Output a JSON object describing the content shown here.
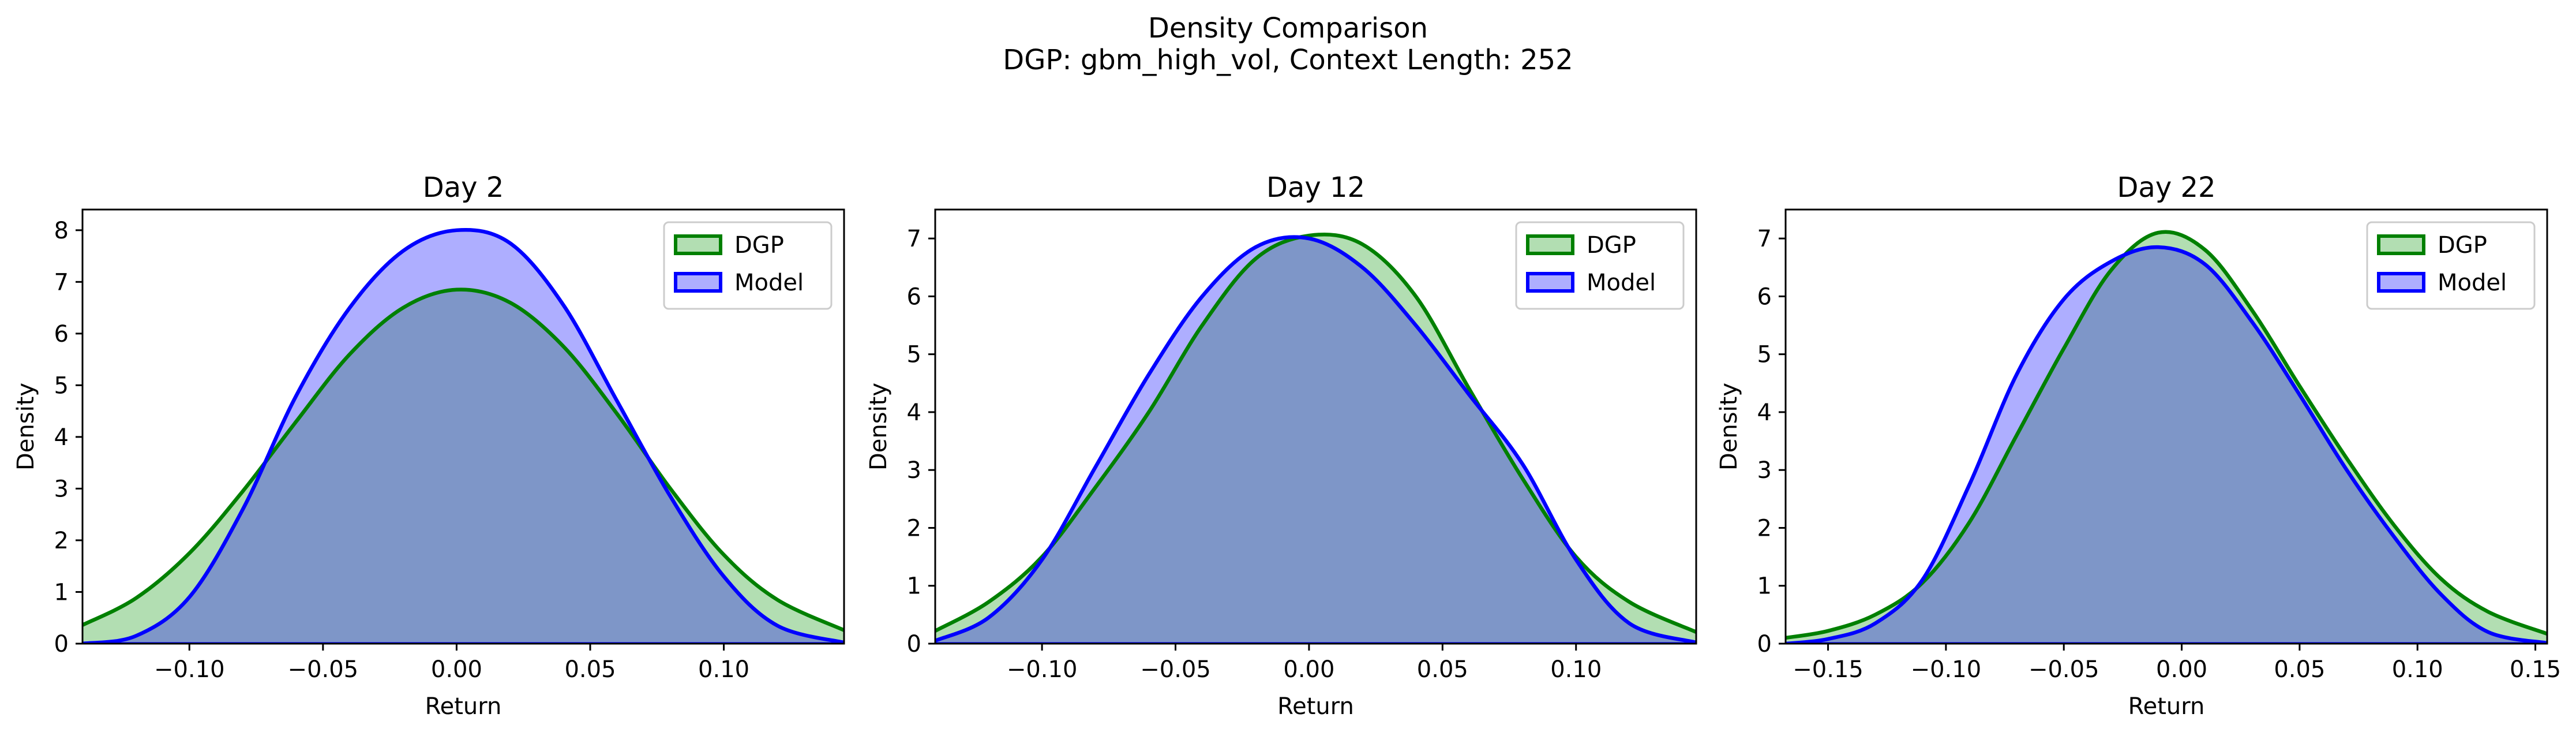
{
  "figure": {
    "title": "Density Comparison",
    "subtitle": "DGP: gbm_high_vol, Context Length: 252"
  },
  "colors": {
    "dgp_line": "#008000",
    "dgp_fill": "#b2deb2",
    "model_line": "#0000ff",
    "model_fill": "#aeaeff",
    "overlap_fill": "#7e96c8"
  },
  "chart_data": [
    {
      "type": "area",
      "title": "Day 2",
      "xlabel": "Return",
      "ylabel": "Density",
      "xlim": [
        -0.14,
        0.145
      ],
      "ylim": [
        0,
        8.4
      ],
      "xticks": [
        -0.1,
        -0.05,
        0.0,
        0.05,
        0.1
      ],
      "xtick_labels": [
        "−0.10",
        "−0.05",
        "0.00",
        "0.05",
        "0.10"
      ],
      "yticks": [
        0,
        1,
        2,
        3,
        4,
        5,
        6,
        7,
        8
      ],
      "ytick_labels": [
        "0",
        "1",
        "2",
        "3",
        "4",
        "5",
        "6",
        "7",
        "8"
      ],
      "legend": "top-right",
      "grid": false,
      "series": [
        {
          "name": "DGP",
          "x": [
            -0.14,
            -0.12,
            -0.1,
            -0.08,
            -0.06,
            -0.04,
            -0.02,
            0.0,
            0.02,
            0.04,
            0.06,
            0.08,
            0.1,
            0.12,
            0.145
          ],
          "y": [
            0.36,
            0.88,
            1.75,
            2.95,
            4.3,
            5.6,
            6.5,
            6.85,
            6.6,
            5.75,
            4.45,
            3.0,
            1.72,
            0.85,
            0.26
          ]
        },
        {
          "name": "Model",
          "x": [
            -0.14,
            -0.12,
            -0.1,
            -0.08,
            -0.06,
            -0.04,
            -0.02,
            0.0,
            0.02,
            0.04,
            0.06,
            0.08,
            0.1,
            0.12,
            0.145
          ],
          "y": [
            0.0,
            0.15,
            0.9,
            2.6,
            4.8,
            6.5,
            7.6,
            8.0,
            7.75,
            6.55,
            4.7,
            2.85,
            1.3,
            0.35,
            0.02
          ]
        }
      ]
    },
    {
      "type": "area",
      "title": "Day 12",
      "xlabel": "Return",
      "ylabel": "Density",
      "xlim": [
        -0.14,
        0.145
      ],
      "ylim": [
        0,
        7.5
      ],
      "xticks": [
        -0.1,
        -0.05,
        0.0,
        0.05,
        0.1
      ],
      "xtick_labels": [
        "−0.10",
        "−0.05",
        "0.00",
        "0.05",
        "0.10"
      ],
      "yticks": [
        0,
        1,
        2,
        3,
        4,
        5,
        6,
        7
      ],
      "ytick_labels": [
        "0",
        "1",
        "2",
        "3",
        "4",
        "5",
        "6",
        "7"
      ],
      "legend": "top-right",
      "grid": false,
      "series": [
        {
          "name": "DGP",
          "x": [
            -0.14,
            -0.12,
            -0.1,
            -0.08,
            -0.06,
            -0.04,
            -0.02,
            0.0,
            0.02,
            0.04,
            0.06,
            0.08,
            0.1,
            0.12,
            0.145
          ],
          "y": [
            0.22,
            0.72,
            1.5,
            2.7,
            4.0,
            5.5,
            6.65,
            7.05,
            6.9,
            6.0,
            4.4,
            2.85,
            1.5,
            0.72,
            0.2
          ]
        },
        {
          "name": "Model",
          "x": [
            -0.14,
            -0.12,
            -0.1,
            -0.08,
            -0.06,
            -0.04,
            -0.02,
            0.0,
            0.02,
            0.04,
            0.06,
            0.08,
            0.1,
            0.12,
            0.145
          ],
          "y": [
            0.05,
            0.45,
            1.45,
            3.05,
            4.65,
            6.0,
            6.85,
            7.0,
            6.5,
            5.5,
            4.3,
            3.1,
            1.45,
            0.35,
            0.02
          ]
        }
      ]
    },
    {
      "type": "area",
      "title": "Day 22",
      "xlabel": "Return",
      "ylabel": "Density",
      "xlim": [
        -0.168,
        0.155
      ],
      "ylim": [
        0,
        7.5
      ],
      "xticks": [
        -0.15,
        -0.1,
        -0.05,
        0.0,
        0.05,
        0.1,
        0.15
      ],
      "xtick_labels": [
        "−0.15",
        "−0.10",
        "−0.05",
        "0.00",
        "0.05",
        "0.10",
        "0.15"
      ],
      "yticks": [
        0,
        1,
        2,
        3,
        4,
        5,
        6,
        7
      ],
      "ytick_labels": [
        "0",
        "1",
        "2",
        "3",
        "4",
        "5",
        "6",
        "7"
      ],
      "legend": "top-right",
      "grid": false,
      "series": [
        {
          "name": "DGP",
          "x": [
            -0.168,
            -0.15,
            -0.13,
            -0.11,
            -0.09,
            -0.07,
            -0.05,
            -0.03,
            -0.01,
            0.01,
            0.03,
            0.05,
            0.07,
            0.09,
            0.11,
            0.13,
            0.155
          ],
          "y": [
            0.1,
            0.22,
            0.5,
            1.05,
            2.1,
            3.6,
            5.1,
            6.45,
            7.1,
            6.8,
            5.75,
            4.45,
            3.2,
            2.05,
            1.12,
            0.55,
            0.17
          ]
        },
        {
          "name": "Model",
          "x": [
            -0.168,
            -0.15,
            -0.13,
            -0.11,
            -0.09,
            -0.07,
            -0.05,
            -0.03,
            -0.01,
            0.01,
            0.03,
            0.05,
            0.07,
            0.09,
            0.11,
            0.13,
            0.155
          ],
          "y": [
            0.0,
            0.08,
            0.35,
            1.1,
            2.75,
            4.65,
            5.95,
            6.6,
            6.85,
            6.55,
            5.55,
            4.3,
            3.0,
            1.85,
            0.85,
            0.2,
            0.01
          ]
        }
      ]
    }
  ]
}
